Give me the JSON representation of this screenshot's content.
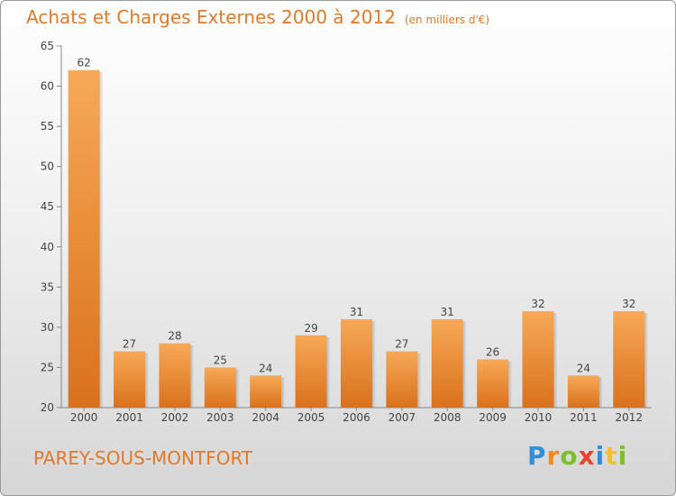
{
  "title": "Achats et Charges Externes 2000 à 2012",
  "unit_note": "(en milliers d'€)",
  "place_name": "PAREY-SOUS-MONTFORT",
  "brand": {
    "letters": [
      "P",
      "r",
      "o",
      "x",
      "i",
      "t",
      "i"
    ],
    "colors": [
      "#2f8fd8",
      "#f08a1c",
      "#7cbf2a",
      "#e8452c",
      "#2f8fd8",
      "#f2c12e",
      "#7cbf2a"
    ]
  },
  "colors": {
    "bar_light": "#f7a957",
    "bar_dark": "#d9711d",
    "text": "#e07a2a"
  },
  "chart_data": {
    "type": "bar",
    "categories": [
      "2000",
      "2001",
      "2002",
      "2003",
      "2004",
      "2005",
      "2006",
      "2007",
      "2008",
      "2009",
      "2010",
      "2011",
      "2012"
    ],
    "values": [
      62,
      27,
      28,
      25,
      24,
      29,
      31,
      27,
      31,
      26,
      32,
      24,
      32
    ],
    "ylim": [
      20,
      65
    ],
    "yticks": [
      20,
      25,
      30,
      35,
      40,
      45,
      50,
      55,
      60,
      65
    ],
    "grid": false
  }
}
